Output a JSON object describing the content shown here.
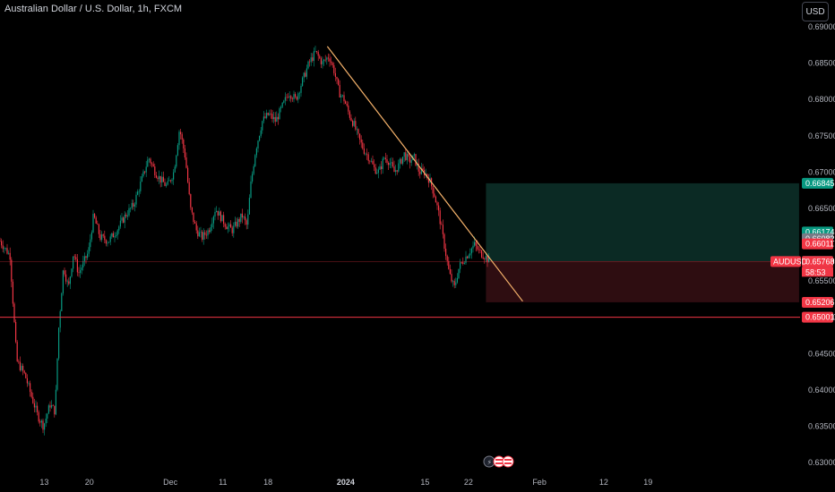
{
  "header": {
    "title": "Australian Dollar / U.S. Dollar, 1h, FXCM",
    "currency_button": "USD"
  },
  "chart_data": {
    "type": "line",
    "symbol": "AUDUSD",
    "ylim": [
      0.63,
      0.69
    ],
    "y_ticks": [
      "0.69000",
      "0.68500",
      "0.68000",
      "0.67500",
      "0.67000",
      "0.66500",
      "0.65500",
      "0.65000",
      "0.64500",
      "0.64000",
      "0.63500",
      "0.63000"
    ],
    "x_ticks": [
      {
        "label": "13",
        "pos": 0.053
      },
      {
        "label": "20",
        "pos": 0.107
      },
      {
        "label": "Dec",
        "pos": 0.204
      },
      {
        "label": "11",
        "pos": 0.267
      },
      {
        "label": "18",
        "pos": 0.321
      },
      {
        "label": "2024",
        "pos": 0.414
      },
      {
        "label": "15",
        "pos": 0.509
      },
      {
        "label": "22",
        "pos": 0.561
      },
      {
        "label": "Feb",
        "pos": 0.646
      },
      {
        "label": "12",
        "pos": 0.723
      },
      {
        "label": "19",
        "pos": 0.776
      }
    ],
    "price_path": [
      [
        0,
        0.6605
      ],
      [
        0.012,
        0.6585
      ],
      [
        0.02,
        0.644
      ],
      [
        0.03,
        0.642
      ],
      [
        0.038,
        0.639
      ],
      [
        0.045,
        0.6365
      ],
      [
        0.052,
        0.635
      ],
      [
        0.06,
        0.638
      ],
      [
        0.066,
        0.637
      ],
      [
        0.07,
        0.648
      ],
      [
        0.076,
        0.657
      ],
      [
        0.082,
        0.654
      ],
      [
        0.088,
        0.659
      ],
      [
        0.094,
        0.656
      ],
      [
        0.1,
        0.6575
      ],
      [
        0.106,
        0.659
      ],
      [
        0.112,
        0.664
      ],
      [
        0.12,
        0.661
      ],
      [
        0.13,
        0.6605
      ],
      [
        0.14,
        0.662
      ],
      [
        0.15,
        0.664
      ],
      [
        0.16,
        0.6655
      ],
      [
        0.17,
        0.669
      ],
      [
        0.178,
        0.672
      ],
      [
        0.186,
        0.67
      ],
      [
        0.192,
        0.669
      ],
      [
        0.2,
        0.668
      ],
      [
        0.208,
        0.67
      ],
      [
        0.215,
        0.676
      ],
      [
        0.222,
        0.672
      ],
      [
        0.228,
        0.665
      ],
      [
        0.235,
        0.662
      ],
      [
        0.242,
        0.661
      ],
      [
        0.25,
        0.662
      ],
      [
        0.258,
        0.665
      ],
      [
        0.266,
        0.6635
      ],
      [
        0.272,
        0.6625
      ],
      [
        0.278,
        0.662
      ],
      [
        0.284,
        0.663
      ],
      [
        0.29,
        0.664
      ],
      [
        0.296,
        0.6625
      ],
      [
        0.3,
        0.668
      ],
      [
        0.306,
        0.673
      ],
      [
        0.314,
        0.677
      ],
      [
        0.322,
        0.678
      ],
      [
        0.33,
        0.677
      ],
      [
        0.338,
        0.679
      ],
      [
        0.346,
        0.681
      ],
      [
        0.354,
        0.68
      ],
      [
        0.362,
        0.6825
      ],
      [
        0.37,
        0.685
      ],
      [
        0.378,
        0.6865
      ],
      [
        0.386,
        0.685
      ],
      [
        0.394,
        0.686
      ],
      [
        0.4,
        0.684
      ],
      [
        0.406,
        0.681
      ],
      [
        0.412,
        0.68
      ],
      [
        0.418,
        0.678
      ],
      [
        0.424,
        0.6765
      ],
      [
        0.43,
        0.6745
      ],
      [
        0.436,
        0.673
      ],
      [
        0.442,
        0.672
      ],
      [
        0.448,
        0.6705
      ],
      [
        0.454,
        0.67
      ],
      [
        0.46,
        0.672
      ],
      [
        0.466,
        0.6715
      ],
      [
        0.472,
        0.67
      ],
      [
        0.478,
        0.671
      ],
      [
        0.484,
        0.6725
      ],
      [
        0.49,
        0.6715
      ],
      [
        0.496,
        0.672
      ],
      [
        0.502,
        0.67
      ],
      [
        0.508,
        0.67
      ],
      [
        0.514,
        0.669
      ],
      [
        0.52,
        0.667
      ],
      [
        0.526,
        0.664
      ],
      [
        0.532,
        0.66
      ],
      [
        0.538,
        0.656
      ],
      [
        0.544,
        0.654
      ],
      [
        0.55,
        0.657
      ],
      [
        0.556,
        0.658
      ],
      [
        0.562,
        0.659
      ],
      [
        0.568,
        0.66
      ],
      [
        0.574,
        0.659
      ],
      [
        0.58,
        0.6585
      ],
      [
        0.586,
        0.6577
      ]
    ],
    "trend_line": [
      [
        0.392,
        0.6873
      ],
      [
        0.626,
        0.6522
      ]
    ],
    "current_price": 0.65768,
    "support_price": 0.65001,
    "position": {
      "entry": 0.65768,
      "target": 0.66845,
      "stop": 0.65206,
      "start": 0.582,
      "end": 0.957
    },
    "price_labels": [
      {
        "text": "0.66845",
        "value": 0.66845,
        "color": "#089981"
      },
      {
        "text": "0.66174",
        "value": 0.66174,
        "color": "#089981"
      },
      {
        "text": "0.66082",
        "value": 0.66082,
        "color": "#787b86"
      },
      {
        "text": "0.66011",
        "value": 0.66011,
        "color": "#f23645"
      },
      {
        "text": "0.65769",
        "value": 0.65769,
        "color": "#787b86"
      },
      {
        "text": "0.65768",
        "value": 0.65768,
        "color": "#f23645"
      },
      {
        "text": "0.65206",
        "value": 0.65206,
        "color": "#f23645"
      },
      {
        "text": "0.65001",
        "value": 0.65001,
        "color": "#f23645"
      }
    ],
    "countdown": "58:53",
    "colors": {
      "up": "#089981",
      "down": "#f23645",
      "trend": "#f5b26b",
      "support": "#f23645",
      "target_zone": "#0b2a24",
      "stop_zone": "#2e0d11"
    }
  }
}
